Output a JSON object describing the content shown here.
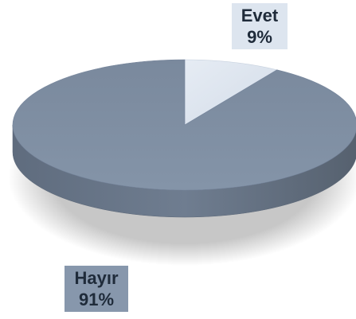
{
  "chart_data": {
    "type": "pie",
    "style": "3d",
    "slices": [
      {
        "label": "Evet",
        "value": 9,
        "value_label": "9%",
        "color": "#dbe3ee"
      },
      {
        "label": "Hayır",
        "value": 91,
        "value_label": "91%",
        "color": "#7f8ea3"
      }
    ]
  }
}
